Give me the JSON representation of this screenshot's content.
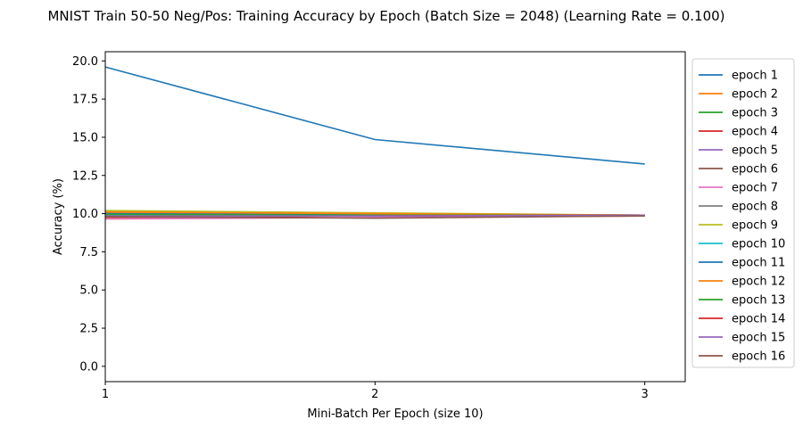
{
  "chart_data": {
    "type": "line",
    "title": "MNIST Train 50-50 Neg/Pos: Training Accuracy by Epoch (Batch Size = 2048) (Learning Rate = 0.100)",
    "xlabel": "Mini-Batch Per Epoch (size 10)",
    "ylabel": "Accuracy (%)",
    "x": [
      1,
      2,
      3
    ],
    "xticks": [
      "1",
      "2",
      "3"
    ],
    "yticks": [
      "0.0",
      "2.5",
      "5.0",
      "7.5",
      "10.0",
      "12.5",
      "15.0",
      "17.5",
      "20.0"
    ],
    "xlim": [
      1,
      3.15
    ],
    "ylim": [
      -1.0,
      20.6
    ],
    "grid": false,
    "legend_position": "outside-right",
    "series": [
      {
        "name": "epoch 1",
        "color": "#1f77b4",
        "values": [
          19.6,
          14.85,
          13.25
        ]
      },
      {
        "name": "epoch 2",
        "color": "#ff7f0e",
        "values": [
          10.15,
          10.0,
          9.9
        ]
      },
      {
        "name": "epoch 3",
        "color": "#2ca02c",
        "values": [
          10.05,
          9.95,
          9.9
        ]
      },
      {
        "name": "epoch 4",
        "color": "#d62728",
        "values": [
          9.8,
          9.85,
          9.9
        ]
      },
      {
        "name": "epoch 5",
        "color": "#9467bd",
        "values": [
          9.95,
          9.9,
          9.85
        ]
      },
      {
        "name": "epoch 6",
        "color": "#8c564b",
        "values": [
          9.9,
          9.85,
          9.85
        ]
      },
      {
        "name": "epoch 7",
        "color": "#e377c2",
        "values": [
          9.65,
          9.75,
          9.85
        ]
      },
      {
        "name": "epoch 8",
        "color": "#7f7f7f",
        "values": [
          10.1,
          9.95,
          9.9
        ]
      },
      {
        "name": "epoch 9",
        "color": "#bcbd22",
        "values": [
          10.2,
          10.05,
          9.9
        ]
      },
      {
        "name": "epoch 10",
        "color": "#17becf",
        "values": [
          9.9,
          9.9,
          9.9
        ]
      },
      {
        "name": "epoch 11",
        "color": "#1f77b4",
        "values": [
          10.0,
          9.9,
          9.85
        ]
      },
      {
        "name": "epoch 12",
        "color": "#ff7f0e",
        "values": [
          10.1,
          10.0,
          9.9
        ]
      },
      {
        "name": "epoch 13",
        "color": "#2ca02c",
        "values": [
          9.95,
          9.9,
          9.9
        ]
      },
      {
        "name": "epoch 14",
        "color": "#d62728",
        "values": [
          9.75,
          9.85,
          9.9
        ]
      },
      {
        "name": "epoch 15",
        "color": "#9467bd",
        "values": [
          9.85,
          9.85,
          9.9
        ]
      },
      {
        "name": "epoch 16",
        "color": "#8c564b",
        "values": [
          9.8,
          9.7,
          9.85
        ]
      }
    ]
  }
}
